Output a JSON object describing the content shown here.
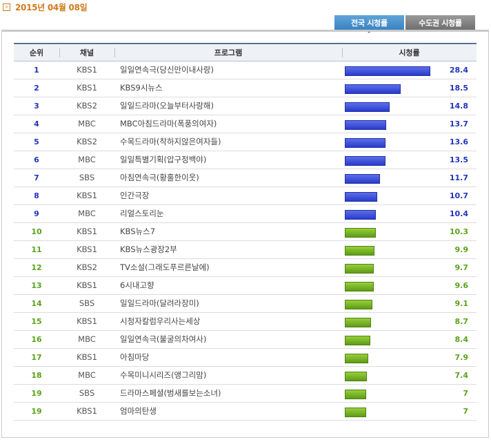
{
  "date_label": "2015년 04월 08일",
  "tabs": [
    {
      "label": "전국 시청률",
      "active": true
    },
    {
      "label": "수도권 시청률",
      "active": false
    }
  ],
  "columns": [
    "순위",
    "채널",
    "프로그램",
    "시청률"
  ],
  "colors": {
    "top_bar": "#2f43d6",
    "rest_bar": "#6ab11e",
    "date": "#d07a1a"
  },
  "max_rating": 28.4,
  "rows": [
    {
      "rank": "1",
      "channel": "KBS1",
      "program": "일일연속극(당신만이내사랑)",
      "rating": 28.4,
      "rating_label": "28.4"
    },
    {
      "rank": "2",
      "channel": "KBS1",
      "program": "KBS9시뉴스",
      "rating": 18.5,
      "rating_label": "18.5"
    },
    {
      "rank": "3",
      "channel": "KBS2",
      "program": "일일드라마(오늘부터사랑해)",
      "rating": 14.8,
      "rating_label": "14.8"
    },
    {
      "rank": "4",
      "channel": "MBC",
      "program": "MBC아침드라마(폭풍의여자)",
      "rating": 13.7,
      "rating_label": "13.7"
    },
    {
      "rank": "5",
      "channel": "KBS2",
      "program": "수목드라마(착하지않은여자들)",
      "rating": 13.6,
      "rating_label": "13.6"
    },
    {
      "rank": "6",
      "channel": "MBC",
      "program": "일일특별기획(압구정백야)",
      "rating": 13.5,
      "rating_label": "13.5"
    },
    {
      "rank": "7",
      "channel": "SBS",
      "program": "아침연속극(황홀한이웃)",
      "rating": 11.7,
      "rating_label": "11.7"
    },
    {
      "rank": "8",
      "channel": "KBS1",
      "program": "인간극장",
      "rating": 10.7,
      "rating_label": "10.7"
    },
    {
      "rank": "9",
      "channel": "MBC",
      "program": "리얼스토리눈",
      "rating": 10.4,
      "rating_label": "10.4"
    },
    {
      "rank": "10",
      "channel": "KBS1",
      "program": "KBS뉴스7",
      "rating": 10.3,
      "rating_label": "10.3"
    },
    {
      "rank": "11",
      "channel": "KBS1",
      "program": "KBS뉴스광장2부",
      "rating": 9.9,
      "rating_label": "9.9"
    },
    {
      "rank": "12",
      "channel": "KBS2",
      "program": "TV소설(그래도푸르른날에)",
      "rating": 9.7,
      "rating_label": "9.7"
    },
    {
      "rank": "13",
      "channel": "KBS1",
      "program": "6시내고향",
      "rating": 9.6,
      "rating_label": "9.6"
    },
    {
      "rank": "14",
      "channel": "SBS",
      "program": "일일드라마(달려라장미)",
      "rating": 9.1,
      "rating_label": "9.1"
    },
    {
      "rank": "15",
      "channel": "KBS1",
      "program": "시청자칼럼우리사는세상",
      "rating": 8.7,
      "rating_label": "8.7"
    },
    {
      "rank": "16",
      "channel": "MBC",
      "program": "일일연속극(불굴의차여사)",
      "rating": 8.4,
      "rating_label": "8.4"
    },
    {
      "rank": "17",
      "channel": "KBS1",
      "program": "아침마당",
      "rating": 7.9,
      "rating_label": "7.9"
    },
    {
      "rank": "18",
      "channel": "MBC",
      "program": "수목미니시리즈(앵그리맘)",
      "rating": 7.4,
      "rating_label": "7.4"
    },
    {
      "rank": "19",
      "channel": "SBS",
      "program": "드라마스페셜(범새를보는소녀)",
      "rating": 7,
      "rating_label": "7"
    },
    {
      "rank": "19",
      "channel": "KBS1",
      "program": "엄마의탄생",
      "rating": 7,
      "rating_label": "7"
    }
  ]
}
